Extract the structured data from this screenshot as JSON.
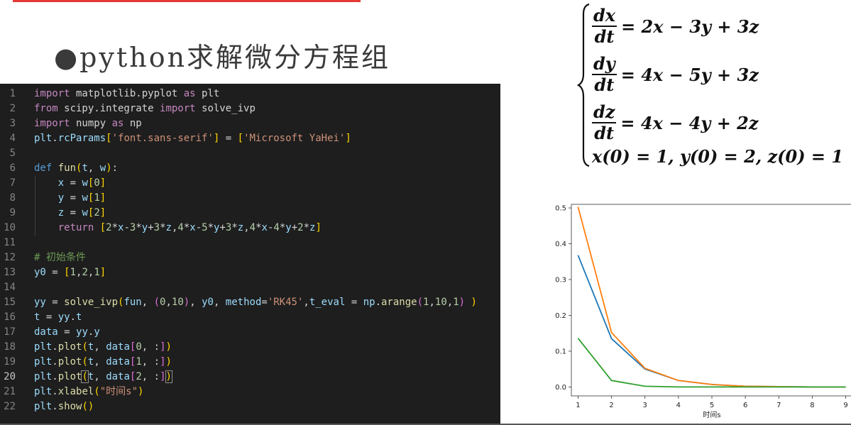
{
  "slide": {
    "title": "●python求解微分方程组"
  },
  "code": {
    "current_line": 20,
    "lines": [
      {
        "n": "1",
        "tokens": [
          [
            "kw",
            "import"
          ],
          [
            "op",
            " matplotlib.pyplot "
          ],
          [
            "kw",
            "as"
          ],
          [
            "op",
            " plt"
          ]
        ]
      },
      {
        "n": "2",
        "tokens": [
          [
            "kw",
            "from"
          ],
          [
            "op",
            " scipy.integrate "
          ],
          [
            "kw",
            "import"
          ],
          [
            "op",
            " solve_ivp"
          ]
        ]
      },
      {
        "n": "3",
        "tokens": [
          [
            "kw",
            "import"
          ],
          [
            "op",
            " numpy "
          ],
          [
            "kw",
            "as"
          ],
          [
            "op",
            " np"
          ]
        ]
      },
      {
        "n": "4",
        "tokens": [
          [
            "var",
            "plt"
          ],
          [
            "op",
            "."
          ],
          [
            "var",
            "rcParams"
          ],
          [
            "br1",
            "["
          ],
          [
            "str",
            "'font.sans-serif'"
          ],
          [
            "br1",
            "]"
          ],
          [
            "op",
            " = "
          ],
          [
            "br1",
            "["
          ],
          [
            "str",
            "'Microsoft YaHei'"
          ],
          [
            "br1",
            "]"
          ]
        ]
      },
      {
        "n": "5",
        "tokens": []
      },
      {
        "n": "6",
        "tokens": [
          [
            "kwb",
            "def"
          ],
          [
            "op",
            " "
          ],
          [
            "fn",
            "fun"
          ],
          [
            "br1",
            "("
          ],
          [
            "var",
            "t"
          ],
          [
            "op",
            ", "
          ],
          [
            "var",
            "w"
          ],
          [
            "br1",
            ")"
          ],
          [
            "op",
            ":"
          ]
        ]
      },
      {
        "n": "7",
        "tokens": [
          [
            "op",
            "    "
          ],
          [
            "var",
            "x"
          ],
          [
            "op",
            " = "
          ],
          [
            "var",
            "w"
          ],
          [
            "br1",
            "["
          ],
          [
            "num",
            "0"
          ],
          [
            "br1",
            "]"
          ]
        ]
      },
      {
        "n": "8",
        "tokens": [
          [
            "op",
            "    "
          ],
          [
            "var",
            "y"
          ],
          [
            "op",
            " = "
          ],
          [
            "var",
            "w"
          ],
          [
            "br1",
            "["
          ],
          [
            "num",
            "1"
          ],
          [
            "br1",
            "]"
          ]
        ]
      },
      {
        "n": "9",
        "tokens": [
          [
            "op",
            "    "
          ],
          [
            "var",
            "z"
          ],
          [
            "op",
            " = "
          ],
          [
            "var",
            "w"
          ],
          [
            "br1",
            "["
          ],
          [
            "num",
            "2"
          ],
          [
            "br1",
            "]"
          ]
        ]
      },
      {
        "n": "10",
        "tokens": [
          [
            "op",
            "    "
          ],
          [
            "kw",
            "return"
          ],
          [
            "op",
            " "
          ],
          [
            "br1",
            "["
          ],
          [
            "num",
            "2"
          ],
          [
            "op",
            "*"
          ],
          [
            "var",
            "x"
          ],
          [
            "op",
            "-"
          ],
          [
            "num",
            "3"
          ],
          [
            "op",
            "*"
          ],
          [
            "var",
            "y"
          ],
          [
            "op",
            "+"
          ],
          [
            "num",
            "3"
          ],
          [
            "op",
            "*"
          ],
          [
            "var",
            "z"
          ],
          [
            "op",
            ","
          ],
          [
            "num",
            "4"
          ],
          [
            "op",
            "*"
          ],
          [
            "var",
            "x"
          ],
          [
            "op",
            "-"
          ],
          [
            "num",
            "5"
          ],
          [
            "op",
            "*"
          ],
          [
            "var",
            "y"
          ],
          [
            "op",
            "+"
          ],
          [
            "num",
            "3"
          ],
          [
            "op",
            "*"
          ],
          [
            "var",
            "z"
          ],
          [
            "op",
            ","
          ],
          [
            "num",
            "4"
          ],
          [
            "op",
            "*"
          ],
          [
            "var",
            "x"
          ],
          [
            "op",
            "-"
          ],
          [
            "num",
            "4"
          ],
          [
            "op",
            "*"
          ],
          [
            "var",
            "y"
          ],
          [
            "op",
            "+"
          ],
          [
            "num",
            "2"
          ],
          [
            "op",
            "*"
          ],
          [
            "var",
            "z"
          ],
          [
            "br1",
            "]"
          ]
        ]
      },
      {
        "n": "11",
        "tokens": []
      },
      {
        "n": "12",
        "tokens": [
          [
            "com",
            "# 初始条件"
          ]
        ]
      },
      {
        "n": "13",
        "tokens": [
          [
            "var",
            "y0"
          ],
          [
            "op",
            " = "
          ],
          [
            "br1",
            "["
          ],
          [
            "num",
            "1"
          ],
          [
            "op",
            ","
          ],
          [
            "num",
            "2"
          ],
          [
            "op",
            ","
          ],
          [
            "num",
            "1"
          ],
          [
            "br1",
            "]"
          ]
        ]
      },
      {
        "n": "14",
        "tokens": []
      },
      {
        "n": "15",
        "tokens": [
          [
            "var",
            "yy"
          ],
          [
            "op",
            " = "
          ],
          [
            "fn",
            "solve_ivp"
          ],
          [
            "br1",
            "("
          ],
          [
            "var",
            "fun"
          ],
          [
            "op",
            ", "
          ],
          [
            "br2",
            "("
          ],
          [
            "num",
            "0"
          ],
          [
            "op",
            ","
          ],
          [
            "num",
            "10"
          ],
          [
            "br2",
            ")"
          ],
          [
            "op",
            ", "
          ],
          [
            "var",
            "y0"
          ],
          [
            "op",
            ", "
          ],
          [
            "var",
            "method"
          ],
          [
            "op",
            "="
          ],
          [
            "str",
            "'RK45'"
          ],
          [
            "op",
            ","
          ],
          [
            "var",
            "t_eval"
          ],
          [
            "op",
            " = "
          ],
          [
            "var",
            "np"
          ],
          [
            "op",
            "."
          ],
          [
            "fn",
            "arange"
          ],
          [
            "br2",
            "("
          ],
          [
            "num",
            "1"
          ],
          [
            "op",
            ","
          ],
          [
            "num",
            "10"
          ],
          [
            "op",
            ","
          ],
          [
            "num",
            "1"
          ],
          [
            "br2",
            ")"
          ],
          [
            "op",
            " "
          ],
          [
            "br1",
            ")"
          ]
        ]
      },
      {
        "n": "16",
        "tokens": [
          [
            "var",
            "t"
          ],
          [
            "op",
            " = "
          ],
          [
            "var",
            "yy"
          ],
          [
            "op",
            "."
          ],
          [
            "var",
            "t"
          ]
        ]
      },
      {
        "n": "17",
        "tokens": [
          [
            "var",
            "data"
          ],
          [
            "op",
            " = "
          ],
          [
            "var",
            "yy"
          ],
          [
            "op",
            "."
          ],
          [
            "var",
            "y"
          ]
        ]
      },
      {
        "n": "18",
        "tokens": [
          [
            "var",
            "plt"
          ],
          [
            "op",
            "."
          ],
          [
            "fn",
            "plot"
          ],
          [
            "br1",
            "("
          ],
          [
            "var",
            "t"
          ],
          [
            "op",
            ", "
          ],
          [
            "var",
            "data"
          ],
          [
            "br2",
            "["
          ],
          [
            "num",
            "0"
          ],
          [
            "op",
            ", :"
          ],
          [
            "br2",
            "]"
          ],
          [
            "br1",
            ")"
          ]
        ]
      },
      {
        "n": "19",
        "tokens": [
          [
            "var",
            "plt"
          ],
          [
            "op",
            "."
          ],
          [
            "fn",
            "plot"
          ],
          [
            "br1",
            "("
          ],
          [
            "var",
            "t"
          ],
          [
            "op",
            ", "
          ],
          [
            "var",
            "data"
          ],
          [
            "br2",
            "["
          ],
          [
            "num",
            "1"
          ],
          [
            "op",
            ", :"
          ],
          [
            "br2",
            "]"
          ],
          [
            "br1",
            ")"
          ]
        ]
      },
      {
        "n": "20",
        "tokens": [
          [
            "var",
            "plt"
          ],
          [
            "op",
            "."
          ],
          [
            "fn",
            "plot"
          ],
          [
            "br1",
            "(",
            1
          ],
          [
            "var",
            "t"
          ],
          [
            "op",
            ", "
          ],
          [
            "var",
            "data"
          ],
          [
            "br2",
            "["
          ],
          [
            "num",
            "2"
          ],
          [
            "op",
            ", :"
          ],
          [
            "br2",
            "]"
          ],
          [
            "br1",
            ")",
            1
          ]
        ]
      },
      {
        "n": "21",
        "tokens": [
          [
            "var",
            "plt"
          ],
          [
            "op",
            "."
          ],
          [
            "fn",
            "xlabel"
          ],
          [
            "br1",
            "("
          ],
          [
            "str",
            "\"时间s\""
          ],
          [
            "br1",
            ")"
          ]
        ]
      },
      {
        "n": "22",
        "tokens": [
          [
            "var",
            "plt"
          ],
          [
            "op",
            "."
          ],
          [
            "fn",
            "show"
          ],
          [
            "br1",
            "("
          ],
          [
            "br1",
            ")"
          ]
        ]
      }
    ]
  },
  "equations": {
    "rows": [
      {
        "num": "dx",
        "den": "dt",
        "rhs": "= 2x − 3y + 3z"
      },
      {
        "num": "dy",
        "den": "dt",
        "rhs": "= 4x − 5y + 3z"
      },
      {
        "num": "dz",
        "den": "dt",
        "rhs": "= 4x − 4y + 2z"
      }
    ],
    "initial": "x(0) = 1, y(0) = 2, z(0) = 1"
  },
  "chart_data": {
    "type": "line",
    "title": "",
    "xlabel": "时间s",
    "ylabel": "",
    "x": [
      1,
      2,
      3,
      4,
      5,
      6,
      7,
      8,
      9
    ],
    "xlim": [
      0.8,
      9.2
    ],
    "ylim": [
      -0.025,
      0.51
    ],
    "yticks": [
      0.0,
      0.1,
      0.2,
      0.3,
      0.4,
      0.5
    ],
    "ytick_labels": [
      "0.0",
      "0.1",
      "0.2",
      "0.3",
      "0.4",
      "0.5"
    ],
    "xticks": [
      1,
      2,
      3,
      4,
      5,
      6,
      7,
      8,
      9
    ],
    "xtick_labels": [
      "1",
      "2",
      "3",
      "4",
      "5",
      "6",
      "7",
      "8",
      "9"
    ],
    "grid": false,
    "series": [
      {
        "color": "#1f77b4",
        "values": [
          0.368,
          0.135,
          0.05,
          0.018,
          0.007,
          0.002,
          0.001,
          0.0,
          0.0
        ]
      },
      {
        "color": "#ff7f0e",
        "values": [
          0.503,
          0.152,
          0.052,
          0.018,
          0.007,
          0.002,
          0.001,
          0.0,
          0.0
        ]
      },
      {
        "color": "#2ca02c",
        "values": [
          0.136,
          0.018,
          0.002,
          0.0,
          0.0,
          0.0,
          0.0,
          0.0,
          0.0
        ]
      }
    ]
  }
}
